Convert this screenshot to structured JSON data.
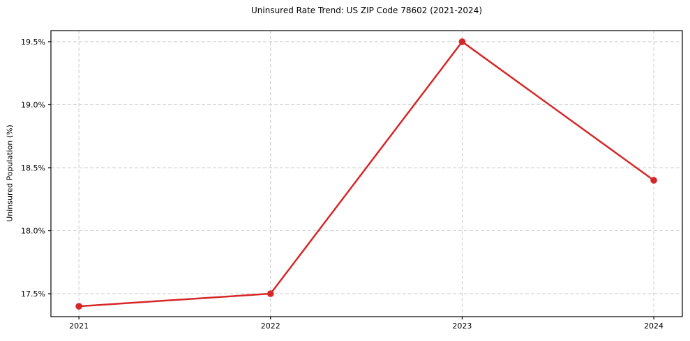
{
  "chart_data": {
    "type": "line",
    "title": "Uninsured Rate Trend: US ZIP Code 78602 (2021-2024)",
    "xlabel": "",
    "ylabel": "Uninsured Population (%)",
    "x": [
      2021,
      2022,
      2023,
      2024
    ],
    "series": [
      {
        "name": "Uninsured rate",
        "values": [
          17.4,
          17.5,
          19.5,
          18.4
        ],
        "color": "#d62728",
        "marker": "circle"
      }
    ],
    "xticks": [
      2021,
      2022,
      2023,
      2024
    ],
    "xtick_labels": [
      "2021",
      "2022",
      "2023",
      "2024"
    ],
    "yticks": [
      17.5,
      18.0,
      18.5,
      19.0,
      19.5
    ],
    "ytick_labels": [
      "17.5%",
      "18.0%",
      "18.5%",
      "19.0%",
      "19.5%"
    ],
    "xlim": [
      2020.854,
      2024.149
    ],
    "ylim": [
      17.318,
      19.588
    ],
    "grid": true,
    "grid_style": "dashed",
    "grid_color": "#cccccc",
    "axis_color": "#000000",
    "background_color": "#ffffff",
    "legend": "none"
  }
}
